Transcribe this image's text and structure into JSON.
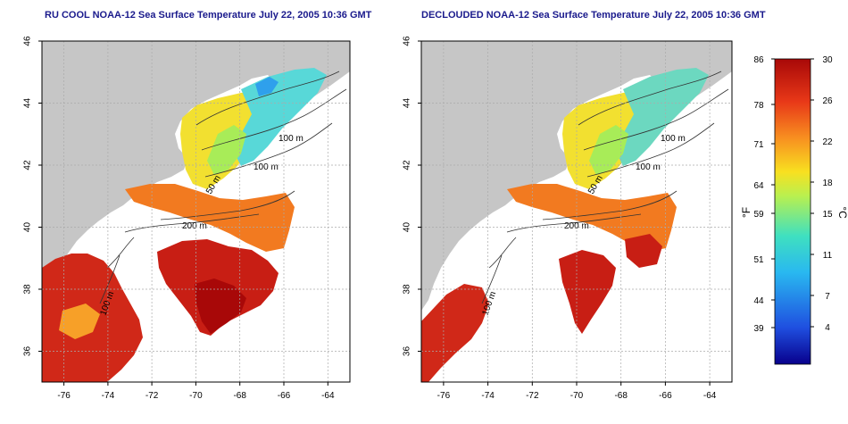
{
  "panels": [
    {
      "title": "RU COOL NOAA-12 Sea Surface Temperature July 22, 2005 10:36 GMT",
      "contour_labels": [
        "100 m",
        "100 m",
        "50 m",
        "200 m",
        "100 m"
      ]
    },
    {
      "title": "DECLOUDED NOAA-12 Sea Surface Temperature July 22, 2005 10:36 GMT",
      "contour_labels": [
        "100 m",
        "100 m",
        "50 m",
        "200 m",
        "100 m"
      ]
    }
  ],
  "axes": {
    "x_ticks": [
      "-76",
      "-74",
      "-72",
      "-70",
      "-68",
      "-66",
      "-64"
    ],
    "y_ticks": [
      "46",
      "44",
      "42",
      "40",
      "38",
      "36"
    ],
    "xlim": [
      -77,
      -63
    ],
    "ylim": [
      35,
      46
    ]
  },
  "colorbar": {
    "fahrenheit_ticks": [
      "86",
      "78",
      "71",
      "64",
      "59",
      "51",
      "44",
      "39"
    ],
    "celsius_ticks": [
      "30",
      "26",
      "22",
      "18",
      "15",
      "11",
      "7",
      "4"
    ],
    "fahrenheit_unit": "°F",
    "celsius_unit": "°C",
    "range_c": [
      0,
      30
    ],
    "colors": [
      "#08008c",
      "#1f4fe0",
      "#29b8f0",
      "#3fe0c0",
      "#b8f050",
      "#f8e020",
      "#f89020",
      "#e83818",
      "#a80808"
    ]
  },
  "colors": {
    "land": "#c6c6c6",
    "title": "#1a1a8c",
    "ocean_missing": "#ffffff"
  }
}
